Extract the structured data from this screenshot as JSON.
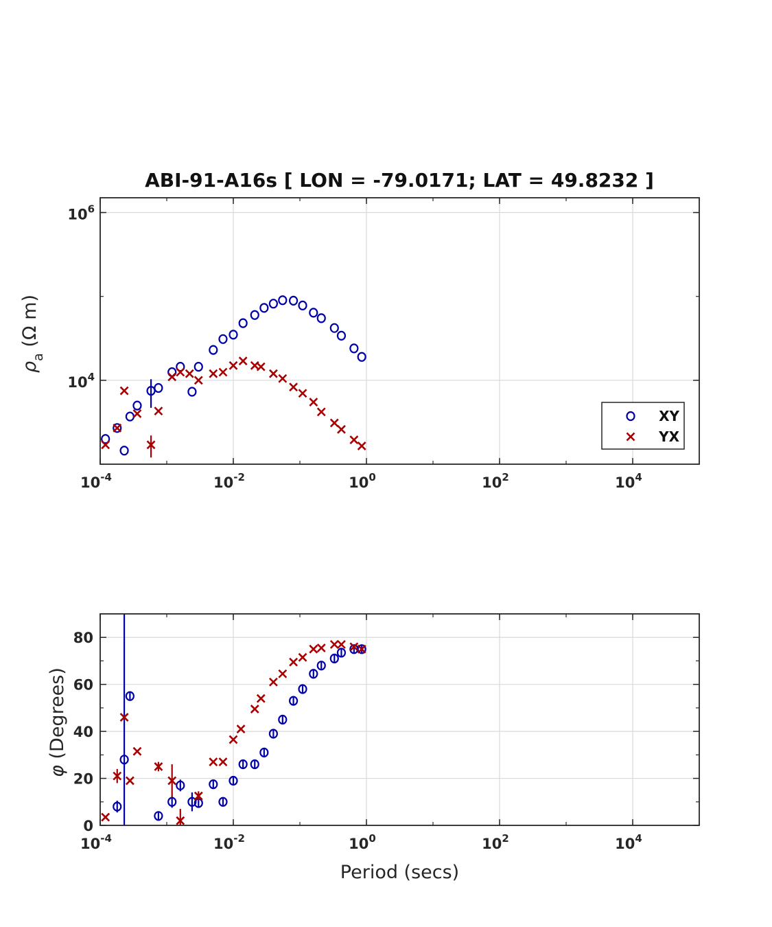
{
  "title": "ABI-91-A16s [ LON = -79.0171; LAT = 49.8232 ]",
  "colors": {
    "xy": "#0000a8",
    "yx": "#a80000",
    "grid": "#d9d9d9",
    "axis": "#262626"
  },
  "chart_data": [
    {
      "id": "resistivity",
      "type": "scatter",
      "title": "ABI-91-A16s [ LON = -79.0171; LAT = 49.8232 ]",
      "xlabel": "",
      "ylabel_symbol": "ρ",
      "ylabel_sub": "a",
      "ylabel_unit": "(Ω m)",
      "xscale": "log",
      "yscale": "log",
      "xlim": [
        0.0001,
        100000
      ],
      "ylim": [
        1000,
        1500000
      ],
      "xticks": [
        {
          "base": "10",
          "exp": "-4"
        },
        {
          "base": "10",
          "exp": "-2"
        },
        {
          "base": "10",
          "exp": "0"
        },
        {
          "base": "10",
          "exp": "2"
        },
        {
          "base": "10",
          "exp": "4"
        }
      ],
      "yticks": [
        {
          "base": "10",
          "exp": "4"
        },
        {
          "base": "10",
          "exp": "6"
        }
      ],
      "grid": true,
      "legend": {
        "location": "bottom-right",
        "entries": [
          "XY",
          "YX"
        ]
      },
      "series": [
        {
          "name": "XY",
          "marker": "circle",
          "x": [
            0.00012,
            0.00018,
            0.00023,
            0.00028,
            0.00036,
            0.00058,
            0.00075,
            0.0012,
            0.0016,
            0.0024,
            0.003,
            0.005,
            0.007,
            0.01,
            0.014,
            0.021,
            0.029,
            0.04,
            0.055,
            0.08,
            0.11,
            0.16,
            0.21,
            0.33,
            0.42,
            0.65,
            0.85
          ],
          "y": [
            2000,
            2700,
            1450,
            3700,
            5000,
            7500,
            8100,
            12500,
            14500,
            7300,
            14500,
            23000,
            31000,
            35000,
            48000,
            60000,
            73000,
            82000,
            90000,
            89000,
            78000,
            64000,
            55000,
            42000,
            34000,
            24000,
            19000
          ],
          "err": [
            null,
            null,
            null,
            null,
            null,
            2800,
            null,
            null,
            null,
            null,
            null,
            null,
            null,
            null,
            null,
            null,
            null,
            null,
            null,
            null,
            null,
            null,
            null,
            null,
            null,
            null,
            null
          ]
        },
        {
          "name": "YX",
          "marker": "x",
          "x": [
            0.00012,
            0.00018,
            0.00023,
            0.00036,
            0.00058,
            0.00075,
            0.0012,
            0.0016,
            0.0022,
            0.003,
            0.005,
            0.007,
            0.01,
            0.014,
            0.021,
            0.026,
            0.04,
            0.055,
            0.08,
            0.11,
            0.16,
            0.21,
            0.33,
            0.42,
            0.65,
            0.85
          ],
          "y": [
            1700,
            2700,
            7500,
            4000,
            1700,
            4300,
            11000,
            12500,
            12000,
            10000,
            12000,
            12500,
            15000,
            17000,
            15000,
            14500,
            12000,
            10500,
            8300,
            7000,
            5500,
            4200,
            3100,
            2600,
            1950,
            1650
          ],
          "err": [
            null,
            null,
            null,
            null,
            500,
            null,
            null,
            null,
            null,
            null,
            null,
            null,
            null,
            null,
            null,
            null,
            null,
            null,
            null,
            null,
            null,
            null,
            null,
            null,
            null,
            null
          ]
        }
      ]
    },
    {
      "id": "phase",
      "type": "scatter",
      "xlabel": "Period (secs)",
      "ylabel_symbol": "φ",
      "ylabel_unit": "(Degrees)",
      "xscale": "log",
      "yscale": "linear",
      "xlim": [
        0.0001,
        100000
      ],
      "ylim": [
        0,
        90
      ],
      "xticks": [
        {
          "base": "10",
          "exp": "-4"
        },
        {
          "base": "10",
          "exp": "-2"
        },
        {
          "base": "10",
          "exp": "0"
        },
        {
          "base": "10",
          "exp": "2"
        },
        {
          "base": "10",
          "exp": "4"
        }
      ],
      "yticks": [
        0,
        20,
        40,
        60,
        80
      ],
      "grid": true,
      "series": [
        {
          "name": "XY",
          "marker": "circle",
          "x": [
            0.00018,
            0.00023,
            0.00028,
            0.00075,
            0.0012,
            0.0016,
            0.0024,
            0.003,
            0.005,
            0.007,
            0.01,
            0.014,
            0.021,
            0.029,
            0.04,
            0.055,
            0.08,
            0.11,
            0.16,
            0.21,
            0.33,
            0.42,
            0.65,
            0.85
          ],
          "y": [
            8,
            28,
            55,
            4,
            10,
            17,
            10,
            9.5,
            17.5,
            10,
            19,
            26,
            26,
            31,
            39,
            45,
            53,
            58,
            64.5,
            68,
            71,
            73.5,
            75,
            75
          ],
          "err": [
            2.5,
            90,
            1.5,
            1.5,
            2.5,
            2.5,
            4,
            1.5,
            1.5,
            1.5,
            1.5,
            1.5,
            1.5,
            1.5,
            1.5,
            1.5,
            1.5,
            1.5,
            1.5,
            1.5,
            1.5,
            1.5,
            1.5,
            1.5
          ]
        },
        {
          "name": "YX",
          "marker": "x",
          "x": [
            0.00012,
            0.00018,
            0.00023,
            0.00028,
            0.00036,
            0.00075,
            0.0012,
            0.0016,
            0.003,
            0.005,
            0.007,
            0.01,
            0.013,
            0.021,
            0.026,
            0.04,
            0.055,
            0.08,
            0.11,
            0.16,
            0.21,
            0.33,
            0.42,
            0.65,
            0.85
          ],
          "y": [
            3.5,
            21,
            46,
            19,
            31.5,
            25,
            19,
            2,
            12.5,
            27,
            27,
            36.5,
            41,
            49.5,
            54,
            61,
            64.5,
            69.5,
            71.5,
            75,
            75.5,
            77,
            77,
            76,
            75
          ],
          "err": [
            null,
            3,
            null,
            null,
            null,
            2,
            7,
            5,
            2,
            null,
            null,
            null,
            null,
            null,
            null,
            null,
            null,
            null,
            null,
            null,
            null,
            null,
            null,
            null,
            null
          ]
        }
      ]
    }
  ]
}
